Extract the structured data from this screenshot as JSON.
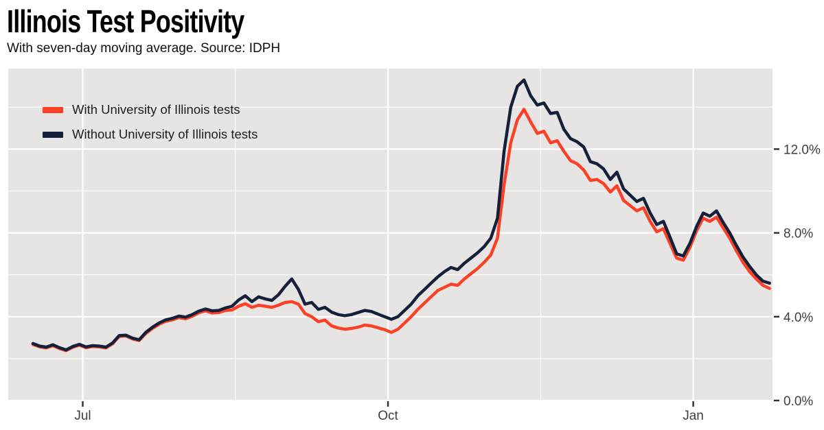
{
  "header": {
    "title": "Illinois Test Positivity",
    "subtitle": "With seven-day moving average. Source: IDPH"
  },
  "legend": {
    "items": [
      {
        "label": "With University of Illinois tests",
        "color": "#fa4128"
      },
      {
        "label": "Without University of Illinois tests",
        "color": "#15203a"
      }
    ]
  },
  "chart_data": {
    "type": "line",
    "title": "Illinois Test Positivity",
    "subtitle": "With seven-day moving average. Source: IDPH",
    "x_tick_labels": [
      "Jul",
      "Oct",
      "Jan"
    ],
    "x_tick_positions": [
      7.5,
      53.5,
      99.5
    ],
    "x_minor_positions": [
      30.5,
      76.5
    ],
    "y_ticks": [
      {
        "label": "0.0%",
        "value": 0
      },
      {
        "label": "4.0%",
        "value": 4
      },
      {
        "label": "8.0%",
        "value": 8
      },
      {
        "label": "12.0%",
        "value": 12
      }
    ],
    "y_minor_values": [
      2,
      6,
      10,
      14
    ],
    "ylim": [
      0,
      15.85
    ],
    "grid": true,
    "legend_position": "top-left-inside",
    "panel_bg": "#e6e5e3",
    "grid_color": "#ffffff",
    "axis_text_color": "#3e3e3e",
    "tick_mark_color": "#2e2e2e",
    "series": [
      {
        "name": "With University of Illinois tests",
        "color": "#fa4128",
        "values": [
          2.68,
          2.56,
          2.51,
          2.62,
          2.48,
          2.38,
          2.54,
          2.64,
          2.52,
          2.58,
          2.56,
          2.51,
          2.71,
          3.06,
          3.08,
          2.94,
          2.86,
          3.2,
          3.44,
          3.64,
          3.78,
          3.85,
          3.96,
          3.9,
          4.02,
          4.19,
          4.28,
          4.18,
          4.2,
          4.3,
          4.32,
          4.5,
          4.62,
          4.45,
          4.55,
          4.5,
          4.45,
          4.55,
          4.68,
          4.72,
          4.6,
          4.15,
          4.0,
          3.76,
          3.84,
          3.56,
          3.46,
          3.4,
          3.44,
          3.5,
          3.6,
          3.56,
          3.47,
          3.38,
          3.25,
          3.4,
          3.7,
          4.0,
          4.35,
          4.65,
          4.95,
          5.25,
          5.4,
          5.55,
          5.5,
          5.8,
          6.05,
          6.3,
          6.6,
          6.95,
          7.75,
          10.3,
          12.3,
          13.4,
          13.9,
          13.3,
          12.75,
          12.85,
          12.3,
          12.4,
          11.9,
          11.45,
          11.3,
          11.0,
          10.5,
          10.55,
          10.35,
          9.95,
          10.25,
          9.55,
          9.3,
          9.05,
          9.2,
          8.55,
          8.05,
          8.2,
          7.5,
          6.8,
          6.7,
          7.3,
          8.1,
          8.7,
          8.55,
          8.75,
          8.25,
          7.75,
          7.15,
          6.6,
          6.15,
          5.8,
          5.5,
          5.35
        ]
      },
      {
        "name": "Without University of Illinois tests",
        "color": "#15203a",
        "values": [
          2.72,
          2.6,
          2.55,
          2.66,
          2.52,
          2.42,
          2.58,
          2.68,
          2.56,
          2.62,
          2.6,
          2.55,
          2.75,
          3.1,
          3.12,
          2.98,
          2.9,
          3.25,
          3.5,
          3.7,
          3.85,
          3.92,
          4.03,
          3.98,
          4.1,
          4.27,
          4.37,
          4.28,
          4.3,
          4.42,
          4.5,
          4.8,
          5.0,
          4.72,
          4.95,
          4.85,
          4.78,
          5.05,
          5.45,
          5.8,
          5.3,
          4.6,
          4.68,
          4.35,
          4.45,
          4.22,
          4.1,
          4.05,
          4.1,
          4.2,
          4.3,
          4.25,
          4.12,
          4.0,
          3.88,
          4.0,
          4.3,
          4.6,
          5.0,
          5.3,
          5.6,
          5.9,
          6.15,
          6.35,
          6.25,
          6.55,
          6.8,
          7.05,
          7.35,
          7.75,
          8.7,
          11.9,
          14.0,
          15.0,
          15.3,
          14.55,
          14.1,
          14.2,
          13.7,
          13.75,
          12.95,
          12.5,
          12.35,
          12.1,
          11.4,
          11.3,
          11.05,
          10.55,
          10.9,
          10.1,
          9.8,
          9.5,
          9.65,
          8.95,
          8.4,
          8.55,
          7.8,
          7.0,
          6.9,
          7.5,
          8.3,
          8.95,
          8.8,
          9.05,
          8.5,
          8.0,
          7.4,
          6.85,
          6.4,
          6.0,
          5.7,
          5.6
        ]
      }
    ]
  }
}
